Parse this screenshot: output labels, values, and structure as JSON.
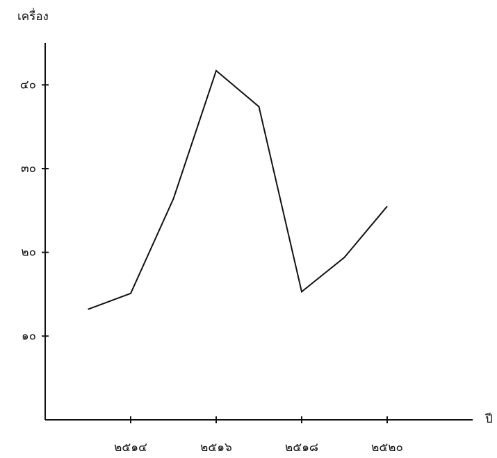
{
  "chart_data": {
    "type": "line",
    "y_label": "เครื่อง",
    "x_label": "ปี",
    "x": [
      2513,
      2514,
      2515,
      2516,
      2517,
      2518,
      2519,
      2520
    ],
    "values": [
      13.2,
      15.1,
      26.4,
      41.7,
      37.4,
      15.3,
      19.4,
      25.5
    ],
    "color": "#111111",
    "xlim": [
      2512,
      2522
    ],
    "xticks": [
      {
        "value": 2514,
        "label": "๒๕๑๔"
      },
      {
        "value": 2516,
        "label": "๒๕๑๖"
      },
      {
        "value": 2518,
        "label": "๒๕๑๘"
      },
      {
        "value": 2520,
        "label": "๒๕๒๐"
      }
    ],
    "ylim": [
      0,
      45
    ],
    "yticks": [
      {
        "value": 10,
        "label": "๑๐"
      },
      {
        "value": 20,
        "label": "๒๐"
      },
      {
        "value": 30,
        "label": "๓๐"
      },
      {
        "value": 40,
        "label": "๔๐"
      }
    ],
    "grid": false
  }
}
